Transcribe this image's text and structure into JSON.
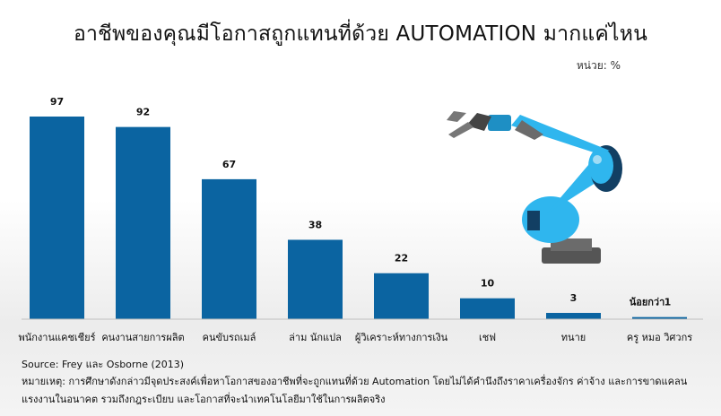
{
  "title": "อาชีพของคุณมีโอกาสถูกแทนที่ด้วย AUTOMATION มากแค่ไหน",
  "unit_label": "หน่วย: %",
  "source": "Source: Frey และ Osborne (2013)",
  "remark": "หมายเหตุ: การศึกษาดังกล่าวมีจุดประสงค์เพื่อหาโอกาสของอาชีพที่จะถูกแทนที่ด้วย Automation โดยไม่ได้คำนึงถึงราคาเครื่องจักร ค่าจ้าง และการขาดแคลนแรงงานในอนาคต รวมถึงกฎระเบียบ และโอกาสที่จะนำเทคโนโลยีมาใช้ในการผลิตจริง",
  "annotation": "น้อยกว่า",
  "colors": {
    "bar": "#0b64a1",
    "robot_blue": "#2fb6ee",
    "robot_dark": "#123f63",
    "robot_gray": "#6b6b6b"
  },
  "illustration": "robot-arm",
  "chart_data": {
    "type": "bar",
    "categories": [
      "พนักงานแคชเชียร์",
      "คนงานสายการผลิต",
      "คนขับรถเมล์",
      "ล่าม นักแปล",
      "ผู้วิเคราะห์ทางการเงิน",
      "เชฟ",
      "ทนาย",
      "ครู หมอ วิศวกร"
    ],
    "values": [
      97,
      92,
      67,
      38,
      22,
      10,
      3,
      1
    ],
    "ylim": [
      0,
      100
    ],
    "grid": false,
    "legend": "none"
  }
}
